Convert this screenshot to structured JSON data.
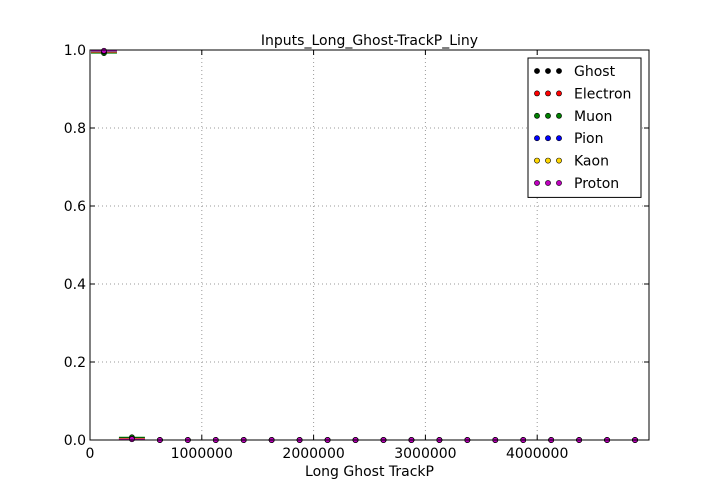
{
  "chart_data": {
    "type": "scatter",
    "title": "Inputs_Long_Ghost-TrackP_Liny",
    "xlabel": "Long Ghost TrackP",
    "ylabel": "",
    "xlim": [
      0,
      5000000
    ],
    "ylim": [
      0,
      1.0
    ],
    "x_ticks": [
      0,
      1000000,
      2000000,
      3000000,
      4000000
    ],
    "x_tick_labels": [
      "0",
      "1000000",
      "2000000",
      "3000000",
      "4000000"
    ],
    "y_ticks": [
      0.0,
      0.2,
      0.4,
      0.6,
      0.8,
      1.0
    ],
    "y_tick_labels": [
      "0.0",
      "0.2",
      "0.4",
      "0.6",
      "0.8",
      "1.0"
    ],
    "grid": true,
    "legend_position": "top-right",
    "bin_width": 250000,
    "x": [
      125000,
      375000,
      625000,
      875000,
      1125000,
      1375000,
      1625000,
      1875000,
      2125000,
      2375000,
      2625000,
      2875000,
      3125000,
      3375000,
      3625000,
      3875000,
      4125000,
      4375000,
      4625000,
      4875000
    ],
    "series": [
      {
        "name": "Ghost",
        "color": "#000000",
        "values": [
          0.995,
          0.005,
          0,
          0,
          0,
          0,
          0,
          0,
          0,
          0,
          0,
          0,
          0,
          0,
          0,
          0,
          0,
          0,
          0,
          0
        ]
      },
      {
        "name": "Electron",
        "color": "#ff0000",
        "values": [
          0.995,
          0.004,
          0,
          0,
          0,
          0,
          0,
          0,
          0,
          0,
          0,
          0,
          0,
          0,
          0,
          0,
          0,
          0,
          0,
          0
        ]
      },
      {
        "name": "Muon",
        "color": "#008000",
        "values": [
          0.992,
          0.007,
          0,
          0,
          0,
          0,
          0,
          0,
          0,
          0,
          0,
          0,
          0,
          0,
          0,
          0,
          0,
          0,
          0,
          0
        ]
      },
      {
        "name": "Pion",
        "color": "#0000ff",
        "values": [
          0.996,
          0.003,
          0,
          0,
          0,
          0,
          0,
          0,
          0,
          0,
          0,
          0,
          0,
          0,
          0,
          0,
          0,
          0,
          0,
          0
        ]
      },
      {
        "name": "Kaon",
        "color": "#ffd700",
        "values": [
          0.997,
          0.003,
          0,
          0,
          0,
          0,
          0,
          0,
          0,
          0,
          0,
          0,
          0,
          0,
          0,
          0,
          0,
          0,
          0,
          0
        ]
      },
      {
        "name": "Proton",
        "color": "#bf00bf",
        "values": [
          0.998,
          0.002,
          0,
          0,
          0,
          0,
          0,
          0,
          0,
          0,
          0,
          0,
          0,
          0,
          0,
          0,
          0,
          0,
          0,
          0
        ]
      }
    ]
  }
}
